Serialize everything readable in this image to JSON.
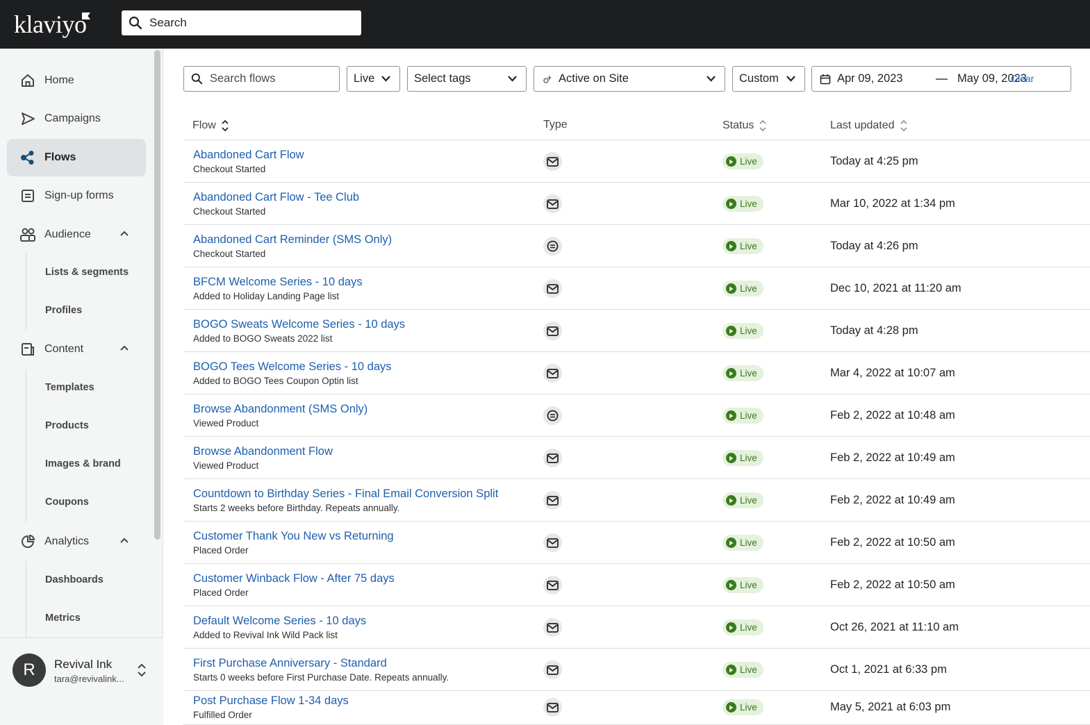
{
  "brand": {
    "logo_text": "klaviyo"
  },
  "global_search": {
    "placeholder": "Search"
  },
  "sidebar": {
    "items": [
      {
        "label": "Home",
        "icon": "home-icon"
      },
      {
        "label": "Campaigns",
        "icon": "send-icon"
      },
      {
        "label": "Flows",
        "icon": "flows-icon",
        "active": true
      },
      {
        "label": "Sign-up forms",
        "icon": "form-icon"
      },
      {
        "label": "Audience",
        "icon": "people-icon",
        "expanded": true
      },
      {
        "label": "Content",
        "icon": "content-icon",
        "expanded": true
      },
      {
        "label": "Analytics",
        "icon": "analytics-icon",
        "expanded": true
      }
    ],
    "audience_sub": [
      "Lists & segments",
      "Profiles"
    ],
    "content_sub": [
      "Templates",
      "Products",
      "Images & brand",
      "Coupons"
    ],
    "analytics_sub": [
      "Dashboards",
      "Metrics"
    ],
    "account": {
      "initial": "R",
      "name": "Revival Ink",
      "email": "tara@revivalink..."
    }
  },
  "filters": {
    "search_placeholder": "Search flows",
    "status": "Live",
    "tags": "Select tags",
    "trigger": "Active on Site",
    "range": "Custom",
    "date_from": "Apr 09, 2023",
    "date_to": "May 09, 2023",
    "clear": "Clear"
  },
  "table": {
    "columns": {
      "flow": "Flow",
      "type": "Type",
      "status": "Status",
      "updated": "Last updated"
    },
    "rows": [
      {
        "name": "Abandoned Cart Flow",
        "trigger": "Checkout Started",
        "type": "email",
        "status": "Live",
        "updated": "Today at 4:25 pm"
      },
      {
        "name": "Abandoned Cart Flow - Tee Club",
        "trigger": "Checkout Started",
        "type": "email",
        "status": "Live",
        "updated": "Mar 10, 2022 at 1:34 pm"
      },
      {
        "name": "Abandoned Cart Reminder (SMS Only)",
        "trigger": "Checkout Started",
        "type": "sms",
        "status": "Live",
        "updated": "Today at 4:26 pm"
      },
      {
        "name": "BFCM Welcome Series - 10 days",
        "trigger": "Added to Holiday Landing Page list",
        "type": "email",
        "status": "Live",
        "updated": "Dec 10, 2021 at 11:20 am"
      },
      {
        "name": "BOGO Sweats Welcome Series - 10 days",
        "trigger": "Added to BOGO Sweats 2022 list",
        "type": "email",
        "status": "Live",
        "updated": "Today at 4:28 pm"
      },
      {
        "name": "BOGO Tees Welcome Series - 10 days",
        "trigger": "Added to BOGO Tees Coupon Optin list",
        "type": "email",
        "status": "Live",
        "updated": "Mar 4, 2022 at 10:07 am"
      },
      {
        "name": "Browse Abandonment (SMS Only)",
        "trigger": "Viewed Product",
        "type": "sms",
        "status": "Live",
        "updated": "Feb 2, 2022 at 10:48 am"
      },
      {
        "name": "Browse Abandonment Flow",
        "trigger": "Viewed Product",
        "type": "email",
        "status": "Live",
        "updated": "Feb 2, 2022 at 10:49 am"
      },
      {
        "name": "Countdown to Birthday Series - Final Email Conversion Split",
        "trigger": "Starts 2 weeks before Birthday. Repeats annually.",
        "type": "email",
        "status": "Live",
        "updated": "Feb 2, 2022 at 10:49 am"
      },
      {
        "name": "Customer Thank You New vs Returning",
        "trigger": "Placed Order",
        "type": "email",
        "status": "Live",
        "updated": "Feb 2, 2022 at 10:50 am"
      },
      {
        "name": "Customer Winback Flow - After 75 days",
        "trigger": "Placed Order",
        "type": "email",
        "status": "Live",
        "updated": "Feb 2, 2022 at 10:50 am"
      },
      {
        "name": "Default Welcome Series - 10 days",
        "trigger": "Added to Revival Ink Wild Pack list",
        "type": "email",
        "status": "Live",
        "updated": "Oct 26, 2021 at 11:10 am"
      },
      {
        "name": "First Purchase Anniversary - Standard",
        "trigger": "Starts 0 weeks before First Purchase Date. Repeats annually.",
        "type": "email",
        "status": "Live",
        "updated": "Oct 1, 2021 at 6:33 pm"
      },
      {
        "name": "Post Purchase Flow 1-34 days",
        "trigger": "Fulfilled Order",
        "type": "email",
        "status": "Live",
        "updated": "May 5, 2021 at 6:03 pm"
      }
    ]
  }
}
